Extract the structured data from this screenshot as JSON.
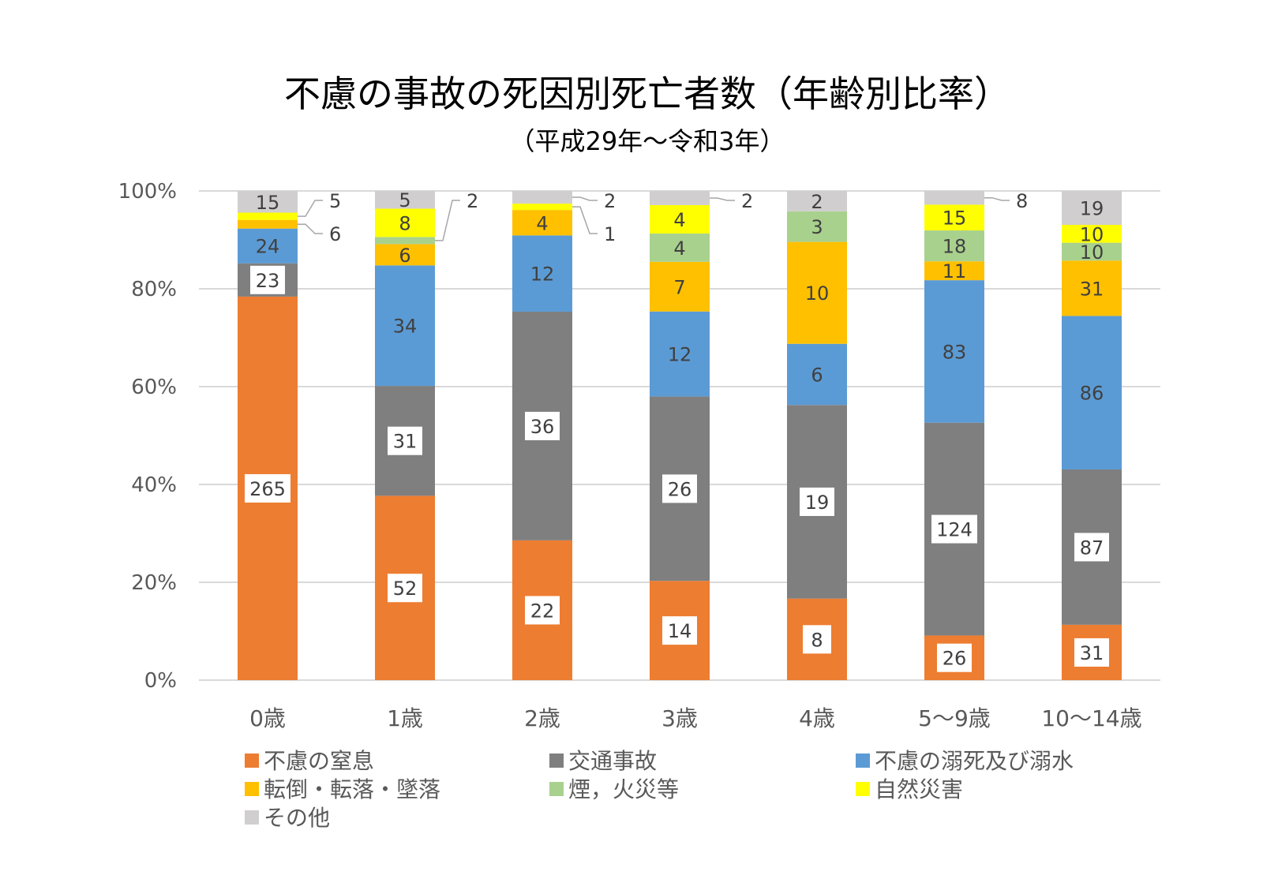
{
  "chart_data": {
    "type": "bar",
    "stacked": true,
    "normalized": true,
    "title": "不慮の事故の死因別死亡者数（年齢別比率）",
    "subtitle": "（平成29年～令和3年）",
    "categories": [
      "0歳",
      "1歳",
      "2歳",
      "3歳",
      "4歳",
      "5～9歳",
      "10～14歳"
    ],
    "ytick_labels": [
      "0%",
      "20%",
      "40%",
      "60%",
      "80%",
      "100%"
    ],
    "ylim": [
      0,
      100
    ],
    "grid": true,
    "legend_position": "bottom",
    "series": [
      {
        "name": "不慮の窒息",
        "color": "#ED7D31",
        "values": [
          265,
          52,
          22,
          14,
          8,
          26,
          31
        ]
      },
      {
        "name": "交通事故",
        "color": "#7F7F7F",
        "values": [
          23,
          31,
          36,
          26,
          19,
          124,
          87
        ]
      },
      {
        "name": "不慮の溺死及び溺水",
        "color": "#5B9BD5",
        "values": [
          24,
          34,
          12,
          12,
          6,
          83,
          86
        ]
      },
      {
        "name": "転倒・転落・墜落",
        "color": "#FFC000",
        "values": [
          6,
          6,
          4,
          7,
          10,
          11,
          31
        ]
      },
      {
        "name": "煙，火災等",
        "color": "#A9D18E",
        "values": [
          0,
          2,
          0,
          4,
          3,
          18,
          10
        ]
      },
      {
        "name": "自然災害",
        "color": "#FFFF00",
        "values": [
          5,
          8,
          1,
          4,
          0,
          15,
          10
        ]
      },
      {
        "name": "その他",
        "color": "#D0CECE",
        "values": [
          15,
          5,
          2,
          2,
          2,
          8,
          19
        ]
      }
    ]
  }
}
